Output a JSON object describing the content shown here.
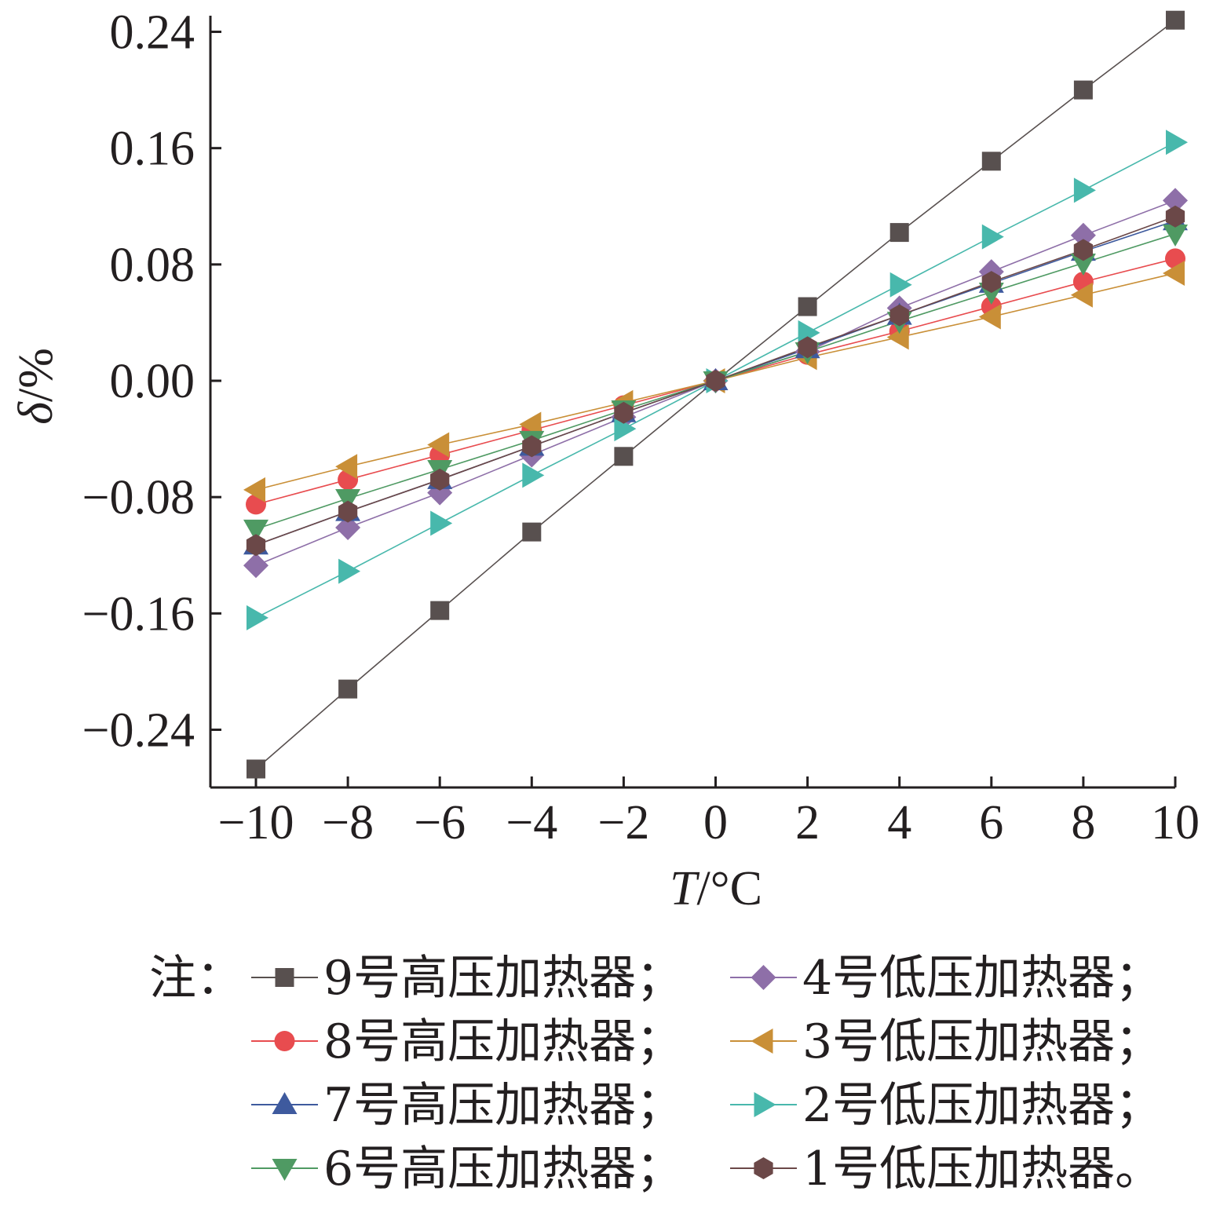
{
  "chart_data": {
    "type": "line",
    "xlabel": {
      "italic": "T",
      "rest": "/°C"
    },
    "ylabel": {
      "italic": "δ",
      "rest": "/%"
    },
    "xlim": [
      -10,
      10
    ],
    "ylim": [
      -0.28,
      0.245
    ],
    "x_ticks": [
      -10,
      -8,
      -6,
      -4,
      -2,
      0,
      2,
      4,
      6,
      8,
      10
    ],
    "x_tick_labels": [
      "−10",
      "−8",
      "−6",
      "−4",
      "−2",
      "0",
      "2",
      "4",
      "6",
      "8",
      "10"
    ],
    "y_ticks": [
      -0.24,
      -0.16,
      -0.08,
      0.0,
      0.08,
      0.16,
      0.24
    ],
    "y_tick_labels": [
      "−0.24",
      "−0.16",
      "−0.08",
      "0.00",
      "0.08",
      "0.16",
      "0.24"
    ],
    "grid": false,
    "legend_position": "bottom",
    "legend_prefix": "注：",
    "x": [
      -10,
      -8,
      -6,
      -4,
      -2,
      0,
      2,
      4,
      6,
      8,
      10
    ],
    "series": [
      {
        "name": "9号高压加热器；",
        "marker": "square",
        "color": "#58504f",
        "values": [
          -0.267,
          -0.212,
          -0.158,
          -0.104,
          -0.052,
          0.0,
          0.051,
          0.102,
          0.151,
          0.2,
          0.248
        ]
      },
      {
        "name": "4号低压加热器；",
        "marker": "diamond",
        "color": "#8e6fa8",
        "values": [
          -0.127,
          -0.101,
          -0.077,
          -0.051,
          -0.025,
          0.0,
          0.02,
          0.05,
          0.075,
          0.1,
          0.124
        ]
      },
      {
        "name": "8号高压加热器；",
        "marker": "circle",
        "color": "#e84c4f",
        "values": [
          -0.085,
          -0.068,
          -0.051,
          -0.034,
          -0.017,
          0.0,
          0.018,
          0.034,
          0.051,
          0.068,
          0.084
        ]
      },
      {
        "name": "3号低压加热器；",
        "marker": "triangle-left",
        "color": "#c98f37",
        "values": [
          -0.075,
          -0.059,
          -0.044,
          -0.03,
          -0.015,
          0.0,
          0.016,
          0.03,
          0.044,
          0.059,
          0.074
        ]
      },
      {
        "name": "7号高压加热器；",
        "marker": "triangle-up",
        "color": "#3e5a9e",
        "values": [
          -0.113,
          -0.09,
          -0.068,
          -0.045,
          -0.022,
          0.0,
          0.022,
          0.045,
          0.067,
          0.089,
          0.11
        ]
      },
      {
        "name": "2号低压加热器；",
        "marker": "triangle-right",
        "color": "#48b8ac",
        "values": [
          -0.163,
          -0.131,
          -0.098,
          -0.065,
          -0.033,
          0.0,
          0.033,
          0.066,
          0.099,
          0.131,
          0.164
        ]
      },
      {
        "name": "6号高压加热器；",
        "marker": "triangle-down",
        "color": "#4f9a63",
        "values": [
          -0.102,
          -0.081,
          -0.061,
          -0.041,
          -0.02,
          0.0,
          0.02,
          0.041,
          0.061,
          0.081,
          0.101
        ]
      },
      {
        "name": "1号低压加热器。",
        "marker": "hexagon",
        "color": "#6b4848",
        "values": [
          -0.113,
          -0.09,
          -0.068,
          -0.045,
          -0.022,
          0.0,
          0.023,
          0.045,
          0.068,
          0.09,
          0.113
        ]
      }
    ]
  }
}
